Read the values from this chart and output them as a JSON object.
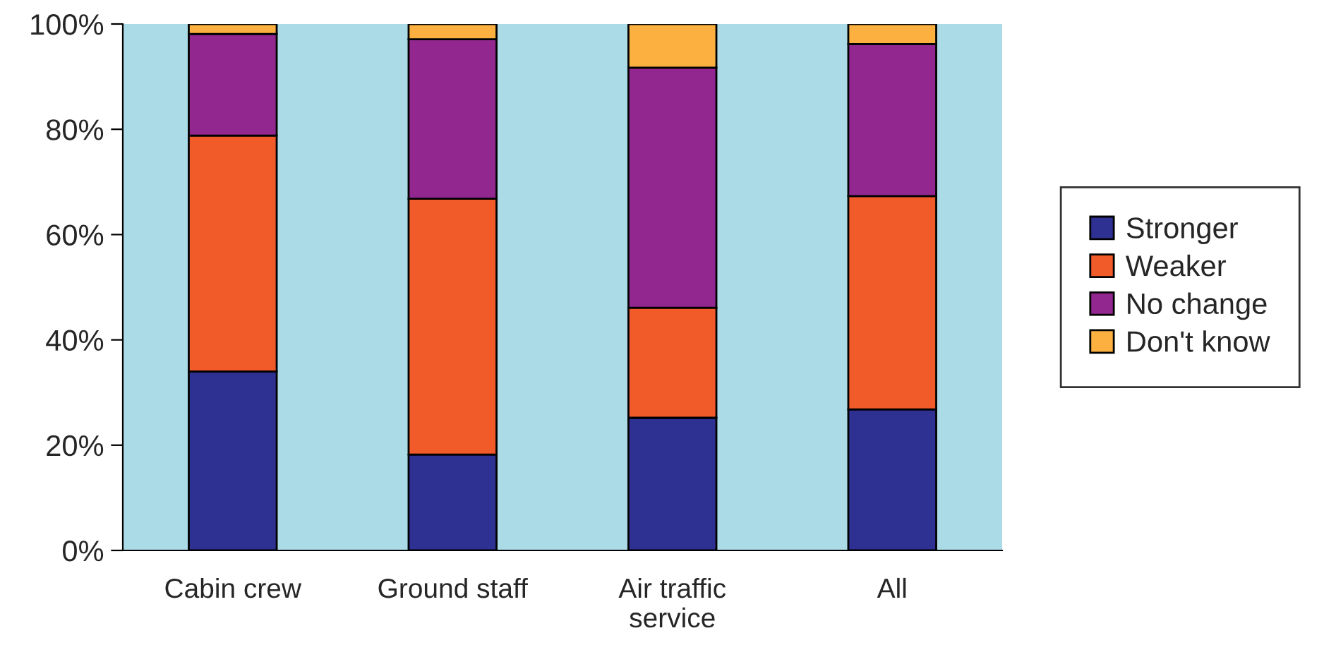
{
  "chart_data": {
    "type": "bar",
    "stacked": true,
    "categories": [
      "Cabin crew",
      "Ground staff",
      "Air traffic\nservice",
      "All"
    ],
    "series": [
      {
        "name": "Stronger",
        "color": "#2e3192",
        "values": [
          34.0,
          18.2,
          25.2,
          26.8
        ]
      },
      {
        "name": "Weaker",
        "color": "#f15a29",
        "values": [
          44.8,
          48.6,
          20.9,
          40.5
        ]
      },
      {
        "name": "No change",
        "color": "#92278f",
        "values": [
          19.3,
          30.3,
          45.6,
          28.9
        ]
      },
      {
        "name": "Don't know",
        "color": "#fbb040",
        "values": [
          1.9,
          2.9,
          8.3,
          3.8
        ]
      }
    ],
    "ylim": [
      0,
      100
    ],
    "yticks": [
      {
        "value": 0,
        "label": "0%"
      },
      {
        "value": 20,
        "label": "20%"
      },
      {
        "value": 40,
        "label": "40%"
      },
      {
        "value": 60,
        "label": "60%"
      },
      {
        "value": 80,
        "label": "80%"
      },
      {
        "value": 100,
        "label": "100%"
      }
    ],
    "grid": false,
    "legend": "right"
  }
}
